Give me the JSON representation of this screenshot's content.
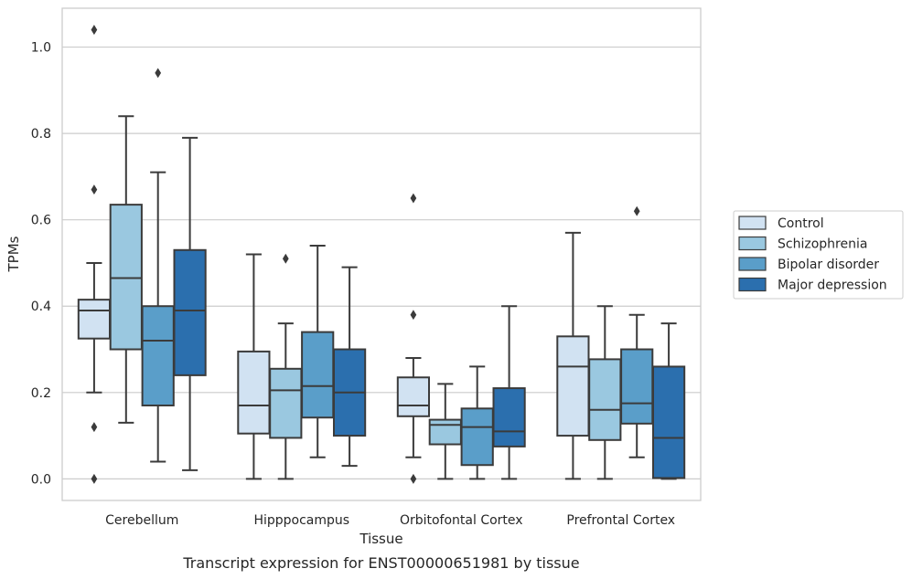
{
  "caption": "Transcript expression for ENST00000651981 by tissue",
  "chart_data": {
    "type": "box",
    "xlabel": "Tissue",
    "ylabel": "TPMs",
    "ylim": [
      -0.05,
      1.09
    ],
    "yticks": [
      0.0,
      0.2,
      0.4,
      0.6,
      0.8,
      1.0
    ],
    "ytick_labels": [
      "0.0",
      "0.2",
      "0.4",
      "0.6",
      "0.8",
      "1.0"
    ],
    "grid": "horizontal",
    "legend_position": "right",
    "categories": [
      "Cerebellum",
      "Hipppocampus",
      "Orbitofontal Cortex",
      "Prefrontal Cortex"
    ],
    "series": [
      {
        "name": "Control",
        "color": "#d1e2f2",
        "boxes": [
          {
            "whisker_low": 0.2,
            "q1": 0.325,
            "median": 0.39,
            "q3": 0.415,
            "whisker_high": 0.5,
            "outliers": [
              1.04,
              0.67,
              0.12,
              0.0
            ]
          },
          {
            "whisker_low": 0.0,
            "q1": 0.105,
            "median": 0.17,
            "q3": 0.295,
            "whisker_high": 0.52,
            "outliers": []
          },
          {
            "whisker_low": 0.05,
            "q1": 0.145,
            "median": 0.17,
            "q3": 0.235,
            "whisker_high": 0.28,
            "outliers": [
              0.65,
              0.38,
              0.0
            ]
          },
          {
            "whisker_low": 0.0,
            "q1": 0.1,
            "median": 0.26,
            "q3": 0.33,
            "whisker_high": 0.57,
            "outliers": []
          }
        ]
      },
      {
        "name": "Schizophrenia",
        "color": "#9ac8e0",
        "boxes": [
          {
            "whisker_low": 0.13,
            "q1": 0.3,
            "median": 0.465,
            "q3": 0.635,
            "whisker_high": 0.84,
            "outliers": []
          },
          {
            "whisker_low": 0.0,
            "q1": 0.095,
            "median": 0.205,
            "q3": 0.255,
            "whisker_high": 0.36,
            "outliers": [
              0.51
            ]
          },
          {
            "whisker_low": 0.0,
            "q1": 0.08,
            "median": 0.125,
            "q3": 0.137,
            "whisker_high": 0.22,
            "outliers": []
          },
          {
            "whisker_low": 0.0,
            "q1": 0.09,
            "median": 0.16,
            "q3": 0.277,
            "whisker_high": 0.4,
            "outliers": []
          }
        ]
      },
      {
        "name": "Bipolar disorder",
        "color": "#5a9ec9",
        "boxes": [
          {
            "whisker_low": 0.04,
            "q1": 0.17,
            "median": 0.32,
            "q3": 0.4,
            "whisker_high": 0.71,
            "outliers": [
              0.94
            ]
          },
          {
            "whisker_low": 0.05,
            "q1": 0.142,
            "median": 0.215,
            "q3": 0.34,
            "whisker_high": 0.54,
            "outliers": []
          },
          {
            "whisker_low": 0.0,
            "q1": 0.032,
            "median": 0.12,
            "q3": 0.163,
            "whisker_high": 0.26,
            "outliers": []
          },
          {
            "whisker_low": 0.05,
            "q1": 0.128,
            "median": 0.175,
            "q3": 0.3,
            "whisker_high": 0.38,
            "outliers": [
              0.62
            ]
          }
        ]
      },
      {
        "name": "Major depression",
        "color": "#2b6fae",
        "boxes": [
          {
            "whisker_low": 0.02,
            "q1": 0.24,
            "median": 0.39,
            "q3": 0.53,
            "whisker_high": 0.79,
            "outliers": []
          },
          {
            "whisker_low": 0.03,
            "q1": 0.1,
            "median": 0.2,
            "q3": 0.3,
            "whisker_high": 0.49,
            "outliers": []
          },
          {
            "whisker_low": 0.0,
            "q1": 0.075,
            "median": 0.11,
            "q3": 0.21,
            "whisker_high": 0.4,
            "outliers": []
          },
          {
            "whisker_low": 0.0,
            "q1": 0.002,
            "median": 0.095,
            "q3": 0.26,
            "whisker_high": 0.36,
            "outliers": []
          }
        ]
      }
    ]
  }
}
